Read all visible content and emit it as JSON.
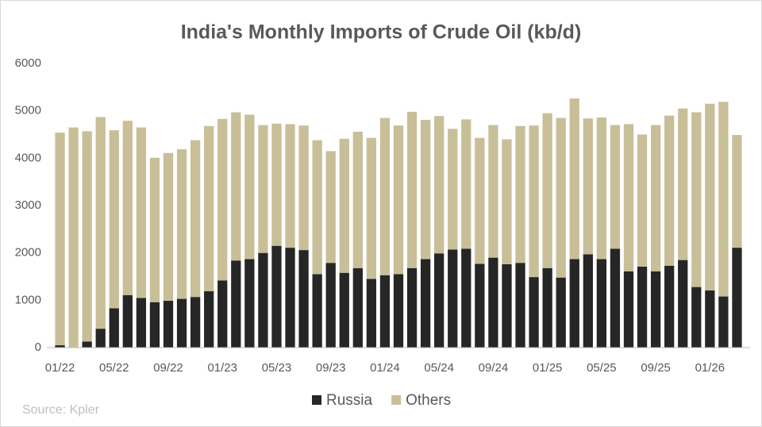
{
  "chart_data": {
    "type": "stacked_bar",
    "title": "India's Monthly Imports of Crude Oil (kb/d)",
    "source": "Source: Kpler",
    "categories": [
      "01/22",
      null,
      null,
      null,
      "05/22",
      null,
      null,
      null,
      "09/22",
      null,
      null,
      null,
      "01/23",
      null,
      null,
      null,
      "05/23",
      null,
      null,
      null,
      "09/23",
      null,
      null,
      null,
      "01/24",
      null,
      null,
      null,
      "05/24",
      null,
      null,
      null,
      "09/24",
      null,
      null,
      null,
      "01/25",
      null,
      null,
      null,
      "05/25",
      null,
      null,
      null,
      "09/25",
      null,
      null,
      null,
      "01/26",
      null,
      null
    ],
    "series": [
      {
        "name": "Russia",
        "color": "#262626",
        "values": [
          50,
          0,
          130,
          400,
          830,
          1110,
          1050,
          960,
          990,
          1030,
          1070,
          1190,
          1420,
          1840,
          1870,
          2000,
          2150,
          2110,
          2060,
          1550,
          1790,
          1580,
          1680,
          1450,
          1530,
          1550,
          1680,
          1870,
          1990,
          2070,
          2090,
          1770,
          1900,
          1760,
          1790,
          1490,
          1680,
          1480,
          1870,
          1970,
          1870,
          2090,
          1610,
          1710,
          1610,
          1730,
          1850,
          1280,
          1210,
          1080,
          2110
        ]
      },
      {
        "name": "Others",
        "color": "#c8bf98",
        "values": [
          4490,
          4650,
          4440,
          4470,
          3760,
          3680,
          3600,
          3050,
          3120,
          3160,
          3310,
          3490,
          3410,
          3130,
          3050,
          2700,
          2580,
          2610,
          2630,
          2830,
          2360,
          2830,
          2880,
          2980,
          3320,
          3140,
          3300,
          2940,
          2900,
          2550,
          2730,
          2660,
          2800,
          2640,
          2890,
          3200,
          3270,
          3370,
          3390,
          2870,
          2990,
          2610,
          3110,
          2790,
          3090,
          3170,
          3200,
          3690,
          3940,
          4110,
          2380
        ]
      }
    ],
    "ylim": [
      0,
      6000
    ],
    "yticks": [
      0,
      1000,
      2000,
      3000,
      4000,
      5000,
      6000
    ],
    "grid": false,
    "legend": "bottom"
  }
}
